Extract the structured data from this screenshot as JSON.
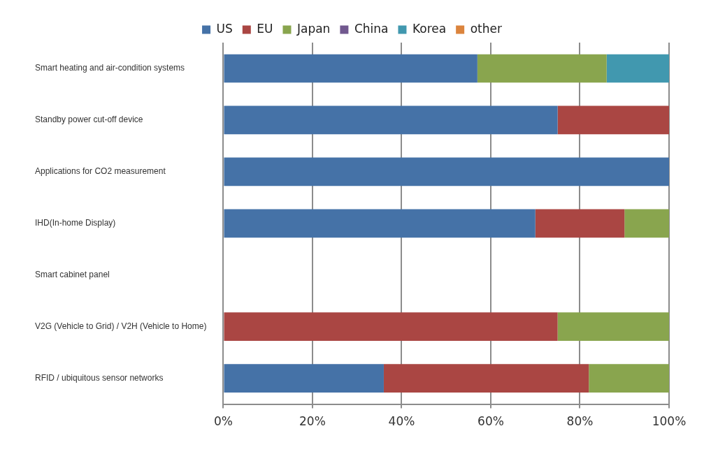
{
  "chart_data": {
    "type": "bar",
    "orientation": "horizontal",
    "stacked": true,
    "grid": true,
    "legend": "top",
    "categories": [
      "Smart heating and air-condition systems",
      "Standby power cut-off device",
      "Applications for CO2 measurement",
      "IHD(In-home Display)",
      "Smart cabinet panel",
      "V2G (Vehicle to Grid) / V2H (Vehicle to Home)",
      "RFID / ubiquitous sensor networks"
    ],
    "series": [
      {
        "name": "US",
        "color": "#4572a7",
        "values": [
          57,
          75,
          100,
          70,
          0,
          0,
          36
        ]
      },
      {
        "name": "EU",
        "color": "#aa4643",
        "values": [
          0,
          25,
          0,
          20,
          0,
          75,
          46
        ]
      },
      {
        "name": "Japan",
        "color": "#89a54e",
        "values": [
          29,
          0,
          0,
          10,
          0,
          25,
          18
        ]
      },
      {
        "name": "China",
        "color": "#71588f",
        "values": [
          0,
          0,
          0,
          0,
          0,
          0,
          0
        ]
      },
      {
        "name": "Korea",
        "color": "#4198af",
        "values": [
          14,
          0,
          0,
          0,
          0,
          0,
          0
        ]
      },
      {
        "name": "other",
        "color": "#db843d",
        "values": [
          0,
          0,
          0,
          0,
          0,
          0,
          0
        ]
      }
    ],
    "xlim": [
      0,
      100
    ],
    "xticks": [
      {
        "value": 0,
        "label": "0%"
      },
      {
        "value": 20,
        "label": "20%"
      },
      {
        "value": 40,
        "label": "40%"
      },
      {
        "value": 60,
        "label": "60%"
      },
      {
        "value": 80,
        "label": "80%"
      },
      {
        "value": 100,
        "label": "100%"
      }
    ]
  }
}
